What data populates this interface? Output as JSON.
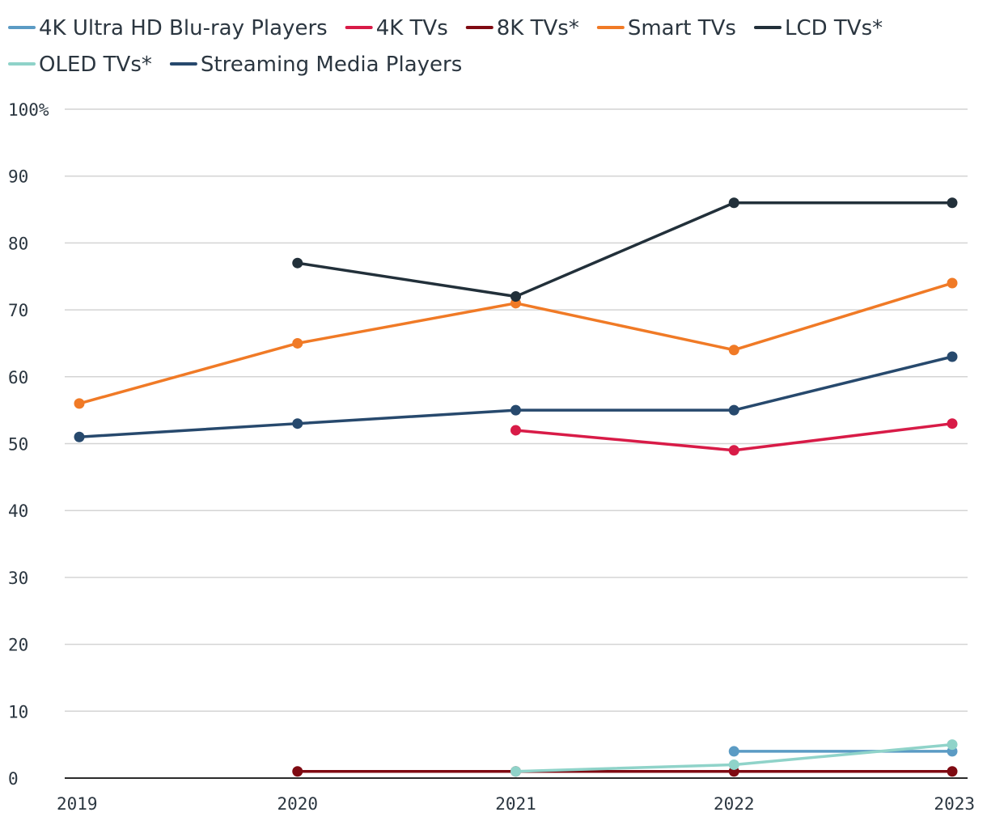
{
  "chart_data": {
    "type": "line",
    "title": "",
    "xlabel": "",
    "ylabel": "",
    "x": [
      "2019",
      "2020",
      "2021",
      "2022",
      "2023"
    ],
    "ylim": [
      0,
      100
    ],
    "yticks": [
      0,
      10,
      20,
      30,
      40,
      50,
      60,
      70,
      80,
      90,
      100
    ],
    "ytick_labels": [
      "0",
      "10",
      "20",
      "30",
      "40",
      "50",
      "60",
      "70",
      "80",
      "90",
      "100%"
    ],
    "grid": true,
    "legend_position": "top",
    "series": [
      {
        "name": "4K Ultra HD Blu-ray Players",
        "color": "#5b9bc4",
        "values": [
          null,
          null,
          null,
          4,
          4
        ]
      },
      {
        "name": "4K TVs",
        "color": "#d81b47",
        "values": [
          null,
          null,
          52,
          49,
          53
        ]
      },
      {
        "name": "8K TVs*",
        "color": "#7f0a12",
        "values": [
          null,
          1,
          1,
          1,
          1
        ]
      },
      {
        "name": "Smart TVs",
        "color": "#f07a26",
        "values": [
          56,
          65,
          71,
          64,
          74
        ]
      },
      {
        "name": "LCD TVs*",
        "color": "#22303a",
        "values": [
          null,
          77,
          72,
          86,
          86
        ]
      },
      {
        "name": "OLED TVs*",
        "color": "#8fd3c9",
        "values": [
          null,
          null,
          1,
          2,
          5
        ]
      },
      {
        "name": "Streaming Media Players",
        "color": "#27496d",
        "values": [
          51,
          53,
          55,
          55,
          63
        ]
      }
    ]
  }
}
